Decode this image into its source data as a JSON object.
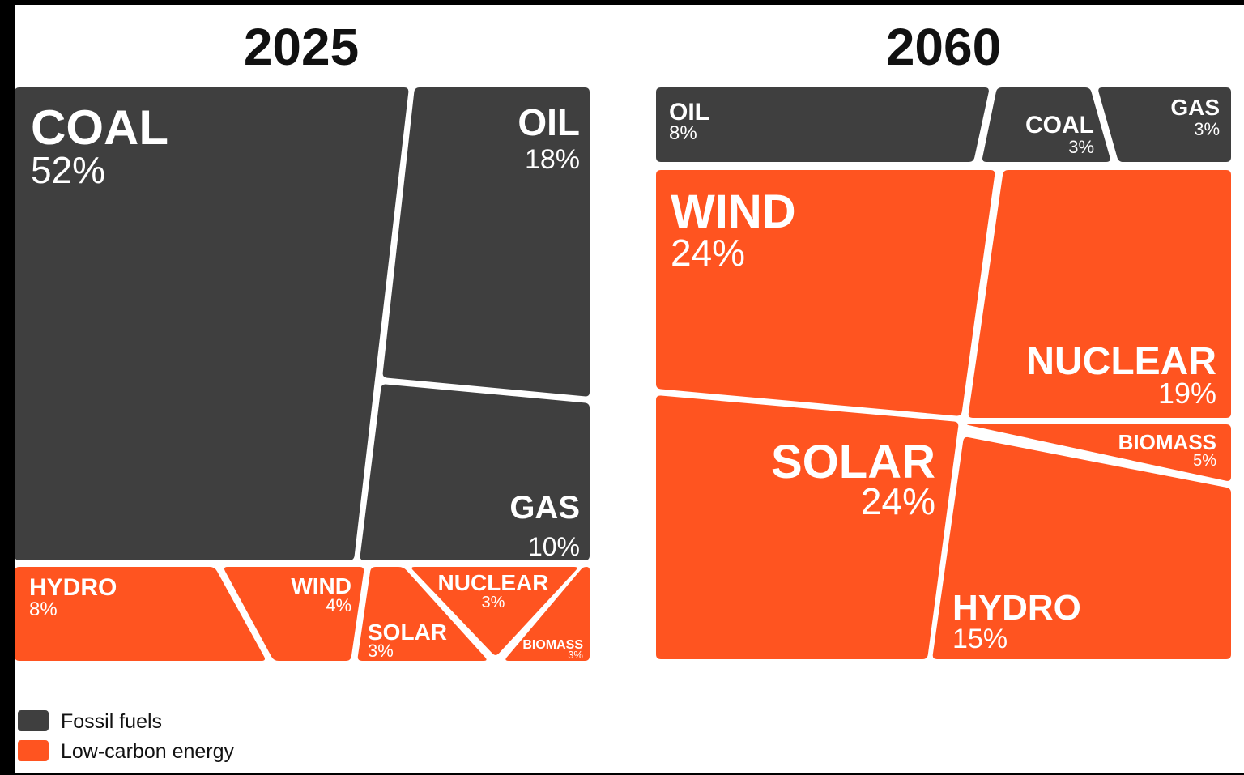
{
  "colors": {
    "fossil": "#3f3f3f",
    "low_carbon": "#ff5420",
    "background": "#ffffff",
    "frame": "#000000",
    "label": "#ffffff",
    "percent_fossil": "#e6e6e6",
    "percent_low_carbon": "#ffd6c6"
  },
  "legend": [
    {
      "label": "Fossil fuels",
      "group": "fossil"
    },
    {
      "label": "Low-carbon energy",
      "group": "low_carbon"
    }
  ],
  "chart_data": [
    {
      "type": "treemap",
      "title": "2025",
      "series": [
        {
          "name": "COAL",
          "value": 52,
          "label": "52%",
          "group": "fossil"
        },
        {
          "name": "OIL",
          "value": 18,
          "label": "18%",
          "group": "fossil"
        },
        {
          "name": "GAS",
          "value": 10,
          "label": "10%",
          "group": "fossil"
        },
        {
          "name": "HYDRO",
          "value": 8,
          "label": "8%",
          "group": "low_carbon"
        },
        {
          "name": "WIND",
          "value": 4,
          "label": "4%",
          "group": "low_carbon"
        },
        {
          "name": "SOLAR",
          "value": 3,
          "label": "3%",
          "group": "low_carbon"
        },
        {
          "name": "NUCLEAR",
          "value": 3,
          "label": "3%",
          "group": "low_carbon"
        },
        {
          "name": "BIOMASS",
          "value": 3,
          "label": "3%",
          "group": "low_carbon"
        }
      ]
    },
    {
      "type": "treemap",
      "title": "2060",
      "series": [
        {
          "name": "OIL",
          "value": 8,
          "label": "8%",
          "group": "fossil"
        },
        {
          "name": "COAL",
          "value": 3,
          "label": "3%",
          "group": "fossil"
        },
        {
          "name": "GAS",
          "value": 3,
          "label": "3%",
          "group": "fossil"
        },
        {
          "name": "WIND",
          "value": 24,
          "label": "24%",
          "group": "low_carbon"
        },
        {
          "name": "NUCLEAR",
          "value": 19,
          "label": "19%",
          "group": "low_carbon"
        },
        {
          "name": "SOLAR",
          "value": 24,
          "label": "24%",
          "group": "low_carbon"
        },
        {
          "name": "BIOMASS",
          "value": 5,
          "label": "5%",
          "group": "low_carbon"
        },
        {
          "name": "HYDRO",
          "value": 15,
          "label": "15%",
          "group": "low_carbon"
        }
      ]
    }
  ]
}
